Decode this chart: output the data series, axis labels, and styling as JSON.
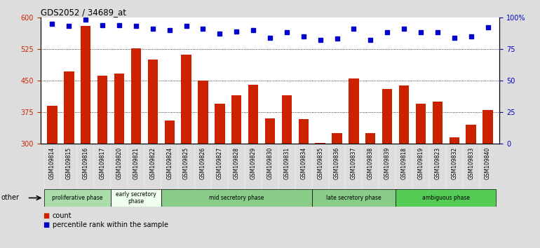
{
  "title": "GDS2052 / 34689_at",
  "samples": [
    "GSM109814",
    "GSM109815",
    "GSM109816",
    "GSM109817",
    "GSM109820",
    "GSM109821",
    "GSM109822",
    "GSM109824",
    "GSM109825",
    "GSM109826",
    "GSM109827",
    "GSM109828",
    "GSM109829",
    "GSM109830",
    "GSM109831",
    "GSM109834",
    "GSM109835",
    "GSM109836",
    "GSM109837",
    "GSM109838",
    "GSM109839",
    "GSM109818",
    "GSM109819",
    "GSM109823",
    "GSM109832",
    "GSM109833",
    "GSM109840"
  ],
  "bar_values": [
    390,
    472,
    580,
    462,
    467,
    527,
    500,
    355,
    512,
    450,
    395,
    415,
    440,
    360,
    415,
    358,
    302,
    325,
    455,
    325,
    430,
    438,
    395,
    400,
    315,
    345,
    380
  ],
  "percentile_values": [
    95,
    93,
    98,
    94,
    94,
    93,
    91,
    90,
    93,
    91,
    87,
    89,
    90,
    84,
    88,
    85,
    82,
    83,
    91,
    82,
    88,
    91,
    88,
    88,
    84,
    85,
    92
  ],
  "bar_color": "#cc2200",
  "percentile_color": "#0000cc",
  "ylim_left": [
    300,
    600
  ],
  "ylim_right": [
    0,
    100
  ],
  "yticks_left": [
    300,
    375,
    450,
    525,
    600
  ],
  "yticks_right": [
    0,
    25,
    50,
    75,
    100
  ],
  "grid_values": [
    375,
    450,
    525
  ],
  "phases": [
    {
      "label": "proliferative phase",
      "start": 0,
      "end": 4,
      "color": "#aaddaa"
    },
    {
      "label": "early secretory\nphase",
      "start": 4,
      "end": 7,
      "color": "#eeffee"
    },
    {
      "label": "mid secretory phase",
      "start": 7,
      "end": 16,
      "color": "#88cc88"
    },
    {
      "label": "late secretory phase",
      "start": 16,
      "end": 21,
      "color": "#88cc88"
    },
    {
      "label": "ambiguous phase",
      "start": 21,
      "end": 27,
      "color": "#55cc55"
    }
  ],
  "other_label": "other",
  "legend_count_label": "count",
  "legend_percentile_label": "percentile rank within the sample",
  "background_color": "#dddddd",
  "plot_bg_color": "#ffffff",
  "xticklabel_bg": "#cccccc"
}
